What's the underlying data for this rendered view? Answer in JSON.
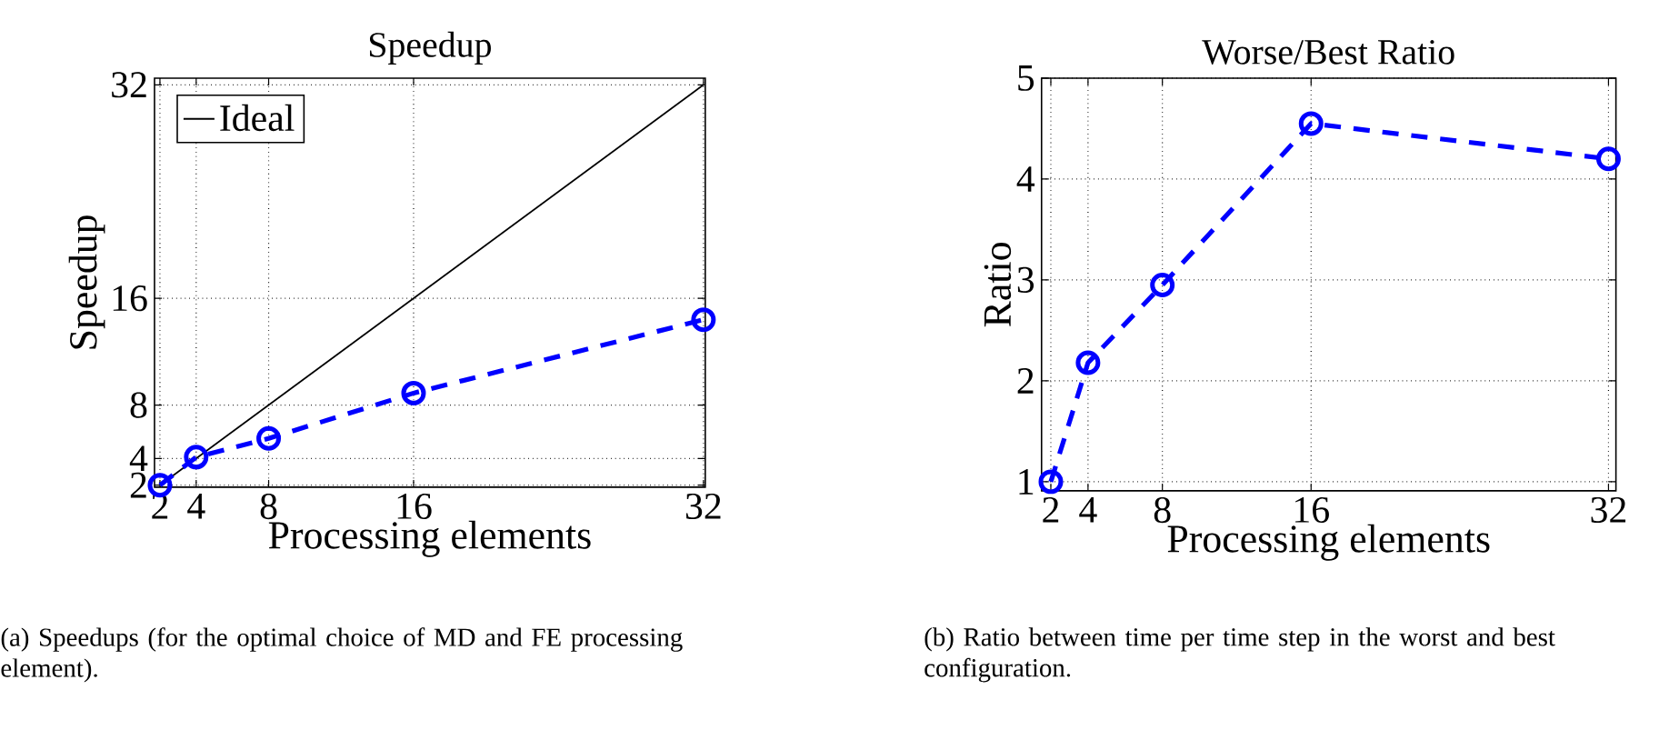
{
  "chart_data": [
    {
      "type": "line",
      "title": "Speedup",
      "xlabel": "Processing elements",
      "ylabel": "Speedup",
      "xlim": [
        1.7,
        32.1
      ],
      "ylim": [
        1.85,
        32.5
      ],
      "xticks": [
        2,
        4,
        8,
        16,
        32
      ],
      "yticks": [
        2,
        4,
        8,
        16,
        32
      ],
      "grid": true,
      "legend": "top left",
      "annotations": [
        "(a) Speedups (for the optimal choice of MD and FE processing element)."
      ],
      "series": [
        {
          "name": "Ideal",
          "color": "#000000",
          "x": [
            2,
            32
          ],
          "values": [
            2,
            32
          ],
          "marker": "none",
          "line_style": "solid"
        },
        {
          "color": "#0000ff",
          "x": [
            2,
            4,
            8,
            16,
            32
          ],
          "values": [
            2,
            4.1,
            5.5,
            8.9,
            14.4
          ],
          "marker": "circle",
          "line_style": "dashed"
        }
      ]
    },
    {
      "type": "line",
      "title": "Worse/Best Ratio",
      "xlabel": "Processing elements",
      "ylabel": "Ratio",
      "xlim": [
        1.5,
        32.4
      ],
      "ylim": [
        0.91,
        5
      ],
      "xticks": [
        2,
        4,
        8,
        16,
        32
      ],
      "yticks": [
        1,
        2,
        3,
        4,
        5
      ],
      "grid": true,
      "annotations": [
        "(b) Ratio between time per time step in the worst and best configuration."
      ],
      "series": [
        {
          "color": "#0000ff",
          "x": [
            2,
            4,
            8,
            16,
            32
          ],
          "values": [
            1.0,
            2.18,
            2.95,
            4.55,
            4.2
          ],
          "marker": "circle",
          "line_style": "dashed"
        }
      ]
    }
  ]
}
